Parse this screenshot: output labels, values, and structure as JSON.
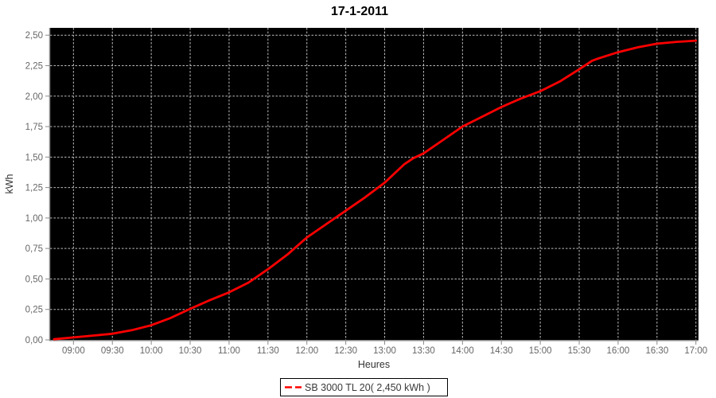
{
  "title": "17-1-2011",
  "legend": {
    "label": "SB 3000 TL 20( 2,450 kWh )"
  },
  "chart_data": {
    "type": "line",
    "title": "17-1-2011",
    "xlabel": "Heures",
    "ylabel": "kWh",
    "x_tick_labels": [
      "09:00",
      "09:30",
      "10:00",
      "10:30",
      "11:00",
      "11:30",
      "12:00",
      "12:30",
      "13:00",
      "13:30",
      "14:00",
      "14:30",
      "15:00",
      "15:30",
      "16:00",
      "16:30",
      "17:00"
    ],
    "y_ticks": [
      0,
      0.25,
      0.5,
      0.75,
      1.0,
      1.25,
      1.5,
      1.75,
      2.0,
      2.25,
      2.5
    ],
    "y_tick_labels": [
      "0,00",
      "0,25",
      "0,50",
      "0,75",
      "1,00",
      "1,25",
      "1,50",
      "1,75",
      "2,00",
      "2,25",
      "2,50"
    ],
    "ylim": [
      0,
      2.56
    ],
    "x_domain": [
      "08:42",
      "17:02"
    ],
    "grid": true,
    "legend_position": "bottom",
    "colors": {
      "plot_background": "#000000",
      "grid": "#bdbdbd",
      "axis": "#8a8a8a",
      "tick_label": "#666666",
      "axis_label": "#333333",
      "title": "#000000",
      "series": "#ff0000",
      "legend_border": "#000000",
      "legend_text": "#3a3a3a"
    },
    "series": [
      {
        "name": "SB 3000 TL 20( 2,450 kWh )",
        "color": "#ff0000",
        "points": [
          [
            "08:45",
            0.005
          ],
          [
            "09:00",
            0.02
          ],
          [
            "09:15",
            0.035
          ],
          [
            "09:30",
            0.05
          ],
          [
            "09:45",
            0.08
          ],
          [
            "10:00",
            0.12
          ],
          [
            "10:15",
            0.18
          ],
          [
            "10:30",
            0.255
          ],
          [
            "10:45",
            0.325
          ],
          [
            "11:00",
            0.39
          ],
          [
            "11:15",
            0.47
          ],
          [
            "11:30",
            0.58
          ],
          [
            "11:45",
            0.7
          ],
          [
            "12:00",
            0.84
          ],
          [
            "12:15",
            0.95
          ],
          [
            "12:30",
            1.06
          ],
          [
            "12:45",
            1.17
          ],
          [
            "13:00",
            1.29
          ],
          [
            "13:15",
            1.44
          ],
          [
            "13:22",
            1.49
          ],
          [
            "13:30",
            1.53
          ],
          [
            "13:45",
            1.64
          ],
          [
            "14:00",
            1.75
          ],
          [
            "14:15",
            1.83
          ],
          [
            "14:30",
            1.91
          ],
          [
            "14:45",
            1.98
          ],
          [
            "15:00",
            2.04
          ],
          [
            "15:15",
            2.12
          ],
          [
            "15:30",
            2.22
          ],
          [
            "15:40",
            2.29
          ],
          [
            "15:45",
            2.31
          ],
          [
            "16:00",
            2.36
          ],
          [
            "16:15",
            2.4
          ],
          [
            "16:30",
            2.43
          ],
          [
            "16:45",
            2.445
          ],
          [
            "17:00",
            2.455
          ]
        ]
      }
    ]
  }
}
